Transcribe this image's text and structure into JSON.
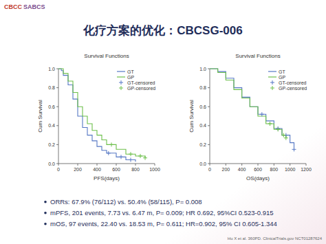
{
  "header": {
    "logo": [
      "CBCC",
      "SABCS"
    ],
    "title": "化疗方案的优化：CBCSG-006"
  },
  "chart_data": [
    {
      "type": "line",
      "title": "Survival Functions",
      "x_label": "PFS(days)",
      "y_label": "Cum Survival",
      "xlim": [
        0,
        1000
      ],
      "ylim": [
        0,
        1
      ],
      "xticks": [
        0,
        200,
        400,
        600,
        800,
        1000
      ],
      "yticks": [
        {
          "value": 0,
          "label": "0.0"
        },
        0.2,
        0.4,
        0.6,
        0.8,
        {
          "value": 1,
          "label": "1.0"
        }
      ],
      "grid": false,
      "legend": "top-right",
      "series": [
        {
          "name": "GT",
          "color": "#5577c4",
          "line_style": "step",
          "x": [
            0,
            30,
            50,
            100,
            150,
            200,
            250,
            300,
            350,
            400,
            450,
            500,
            600,
            700,
            800
          ],
          "values": [
            1,
            0.98,
            0.93,
            0.83,
            0.68,
            0.5,
            0.38,
            0.3,
            0.24,
            0.18,
            0.14,
            0.11,
            0.07,
            0.04,
            0.02
          ]
        },
        {
          "name": "GP",
          "color": "#6cbf4a",
          "line_style": "step",
          "x": [
            0,
            50,
            100,
            150,
            200,
            250,
            300,
            350,
            400,
            450,
            500,
            600,
            700,
            800,
            900
          ],
          "values": [
            1,
            0.95,
            0.87,
            0.75,
            0.6,
            0.5,
            0.42,
            0.35,
            0.3,
            0.25,
            0.2,
            0.15,
            0.1,
            0.08,
            0.06
          ]
        },
        {
          "name": "GT-censored",
          "type": "scatter",
          "marker": "plus",
          "color": "#5577c4",
          "x": [
            520,
            650,
            750
          ],
          "values": [
            0.11,
            0.07,
            0.04
          ]
        },
        {
          "name": "GP-censored",
          "type": "scatter",
          "marker": "plus",
          "color": "#6cbf4a",
          "x": [
            550,
            750,
            850,
            900
          ],
          "values": [
            0.2,
            0.1,
            0.08,
            0.06
          ]
        }
      ]
    },
    {
      "type": "line",
      "title": "Survival Functions",
      "x_label": "OS(days)",
      "y_label": "Cum Survival",
      "xlim": [
        0,
        1200
      ],
      "ylim": [
        0,
        1
      ],
      "xticks": [
        0,
        200,
        400,
        600,
        800,
        1000,
        1200
      ],
      "yticks": [
        {
          "value": 0,
          "label": "0.0"
        },
        0.2,
        0.4,
        0.6,
        0.8,
        {
          "value": 1,
          "label": "1.0"
        }
      ],
      "grid": false,
      "legend": "top-right",
      "series": [
        {
          "name": "GT",
          "color": "#5577c4",
          "line_style": "step",
          "x": [
            0,
            100,
            200,
            300,
            400,
            500,
            600,
            700,
            800,
            900,
            1000,
            1050
          ],
          "values": [
            1,
            0.97,
            0.9,
            0.8,
            0.7,
            0.6,
            0.52,
            0.45,
            0.37,
            0.3,
            0.22,
            0.15
          ]
        },
        {
          "name": "GP",
          "color": "#6cbf4a",
          "line_style": "step",
          "x": [
            0,
            100,
            200,
            300,
            400,
            500,
            600,
            700,
            800,
            900,
            950
          ],
          "values": [
            1,
            0.96,
            0.88,
            0.78,
            0.69,
            0.6,
            0.5,
            0.42,
            0.36,
            0.3,
            0.27
          ]
        },
        {
          "name": "GT-censored",
          "type": "scatter",
          "marker": "plus",
          "color": "#5577c4",
          "x": [
            650,
            850,
            950,
            1050
          ],
          "values": [
            0.52,
            0.37,
            0.3,
            0.15
          ]
        },
        {
          "name": "GP-censored",
          "type": "scatter",
          "marker": "plus",
          "color": "#6cbf4a",
          "x": [
            750,
            850,
            920,
            950
          ],
          "values": [
            0.42,
            0.36,
            0.3,
            0.27
          ]
        }
      ]
    }
  ],
  "bullets": [
    "ORRs: 67.9% (76/112) vs. 50.4% (58/115), P= 0.008",
    "mPFS, 201 events, 7.73 vs. 6.47 m, P= 0.009; HR 0.692, 95%CI 0.523-0.915",
    "mOS, 97 events, 22.40 vs. 18.53 m, P= 0.611; HR=0.902, 95% CI 0.605-1.344"
  ],
  "footnote": "Hu X et al. 360PD. ClinicalTrials.gov NCT01287624"
}
